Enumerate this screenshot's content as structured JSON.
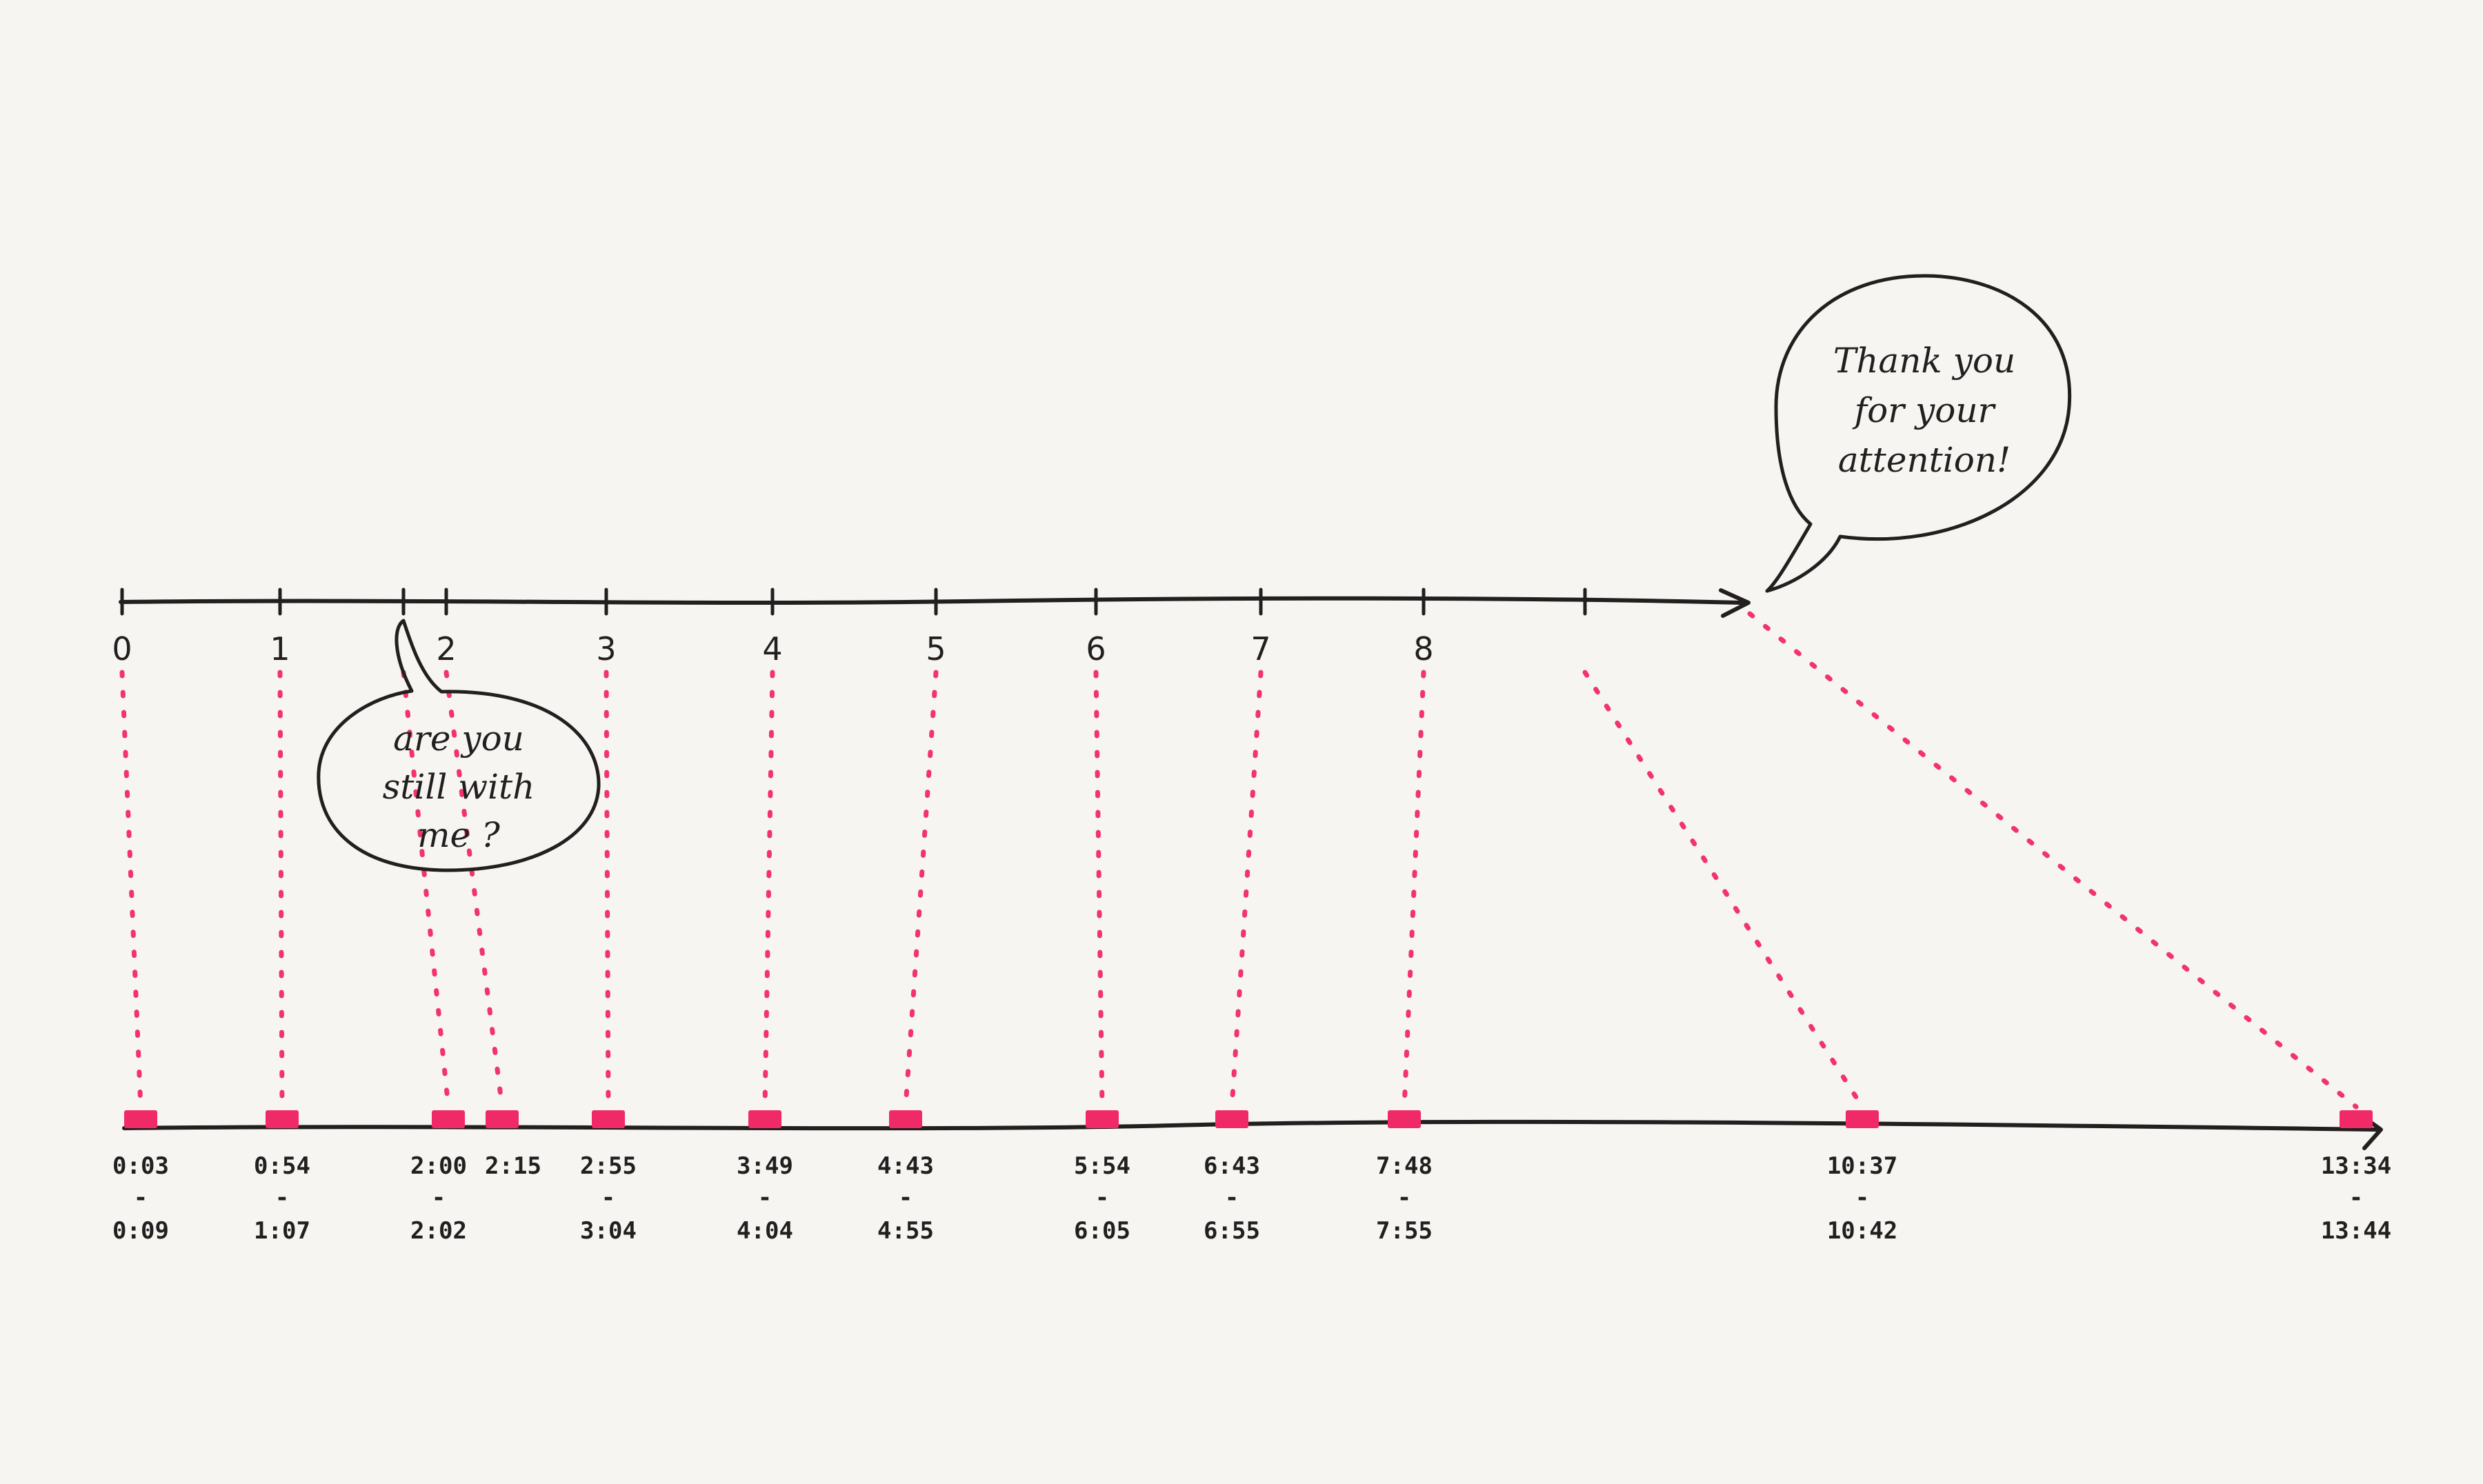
{
  "colors": {
    "paper": "#f6f5f2",
    "ink": "#231f20",
    "highlight": "#ef2a66"
  },
  "top_axis": {
    "ticks": [
      {
        "label": "0"
      },
      {
        "label": "1"
      },
      {
        "label": ""
      },
      {
        "label": "2"
      },
      {
        "label": "3"
      },
      {
        "label": "4"
      },
      {
        "label": "5"
      },
      {
        "label": "6"
      },
      {
        "label": "7"
      },
      {
        "label": "8"
      },
      {
        "label": ""
      }
    ]
  },
  "bottom_axis": {
    "marks": [
      {
        "start": "0:03",
        "dash": "-",
        "end": "0:09"
      },
      {
        "start": "0:54",
        "dash": "-",
        "end": "1:07"
      },
      {
        "start": "2:00",
        "dash": "-",
        "end": "2:02"
      },
      {
        "start": "2:15",
        "dash": "",
        "end": ""
      },
      {
        "start": "2:55",
        "dash": "-",
        "end": "3:04"
      },
      {
        "start": "3:49",
        "dash": "-",
        "end": "4:04"
      },
      {
        "start": "4:43",
        "dash": "-",
        "end": "4:55"
      },
      {
        "start": "5:54",
        "dash": "-",
        "end": "6:05"
      },
      {
        "start": "6:43",
        "dash": "-",
        "end": "6:55"
      },
      {
        "start": "7:48",
        "dash": "-",
        "end": "7:55"
      },
      {
        "start": "10:37",
        "dash": "-",
        "end": "10:42"
      },
      {
        "start": "13:34",
        "dash": "-",
        "end": "13:44"
      }
    ]
  },
  "bubbles": {
    "still_with_me": {
      "lines": [
        "are you",
        "still with",
        "me ?"
      ]
    },
    "thank_you": {
      "lines": [
        "Thank you",
        "for your",
        "attention!"
      ]
    }
  }
}
